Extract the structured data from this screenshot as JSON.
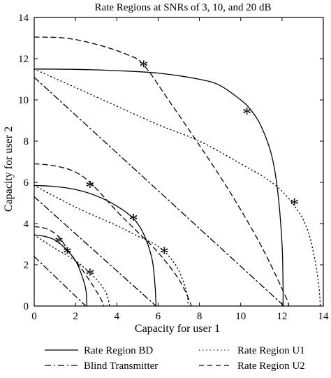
{
  "chart_data": {
    "type": "line",
    "title": "Rate Regions at SNRs of 3, 10, and 20 dB",
    "xlabel": "Capacity for user 1",
    "ylabel": "Capacity for user 2",
    "xlim": [
      0,
      14
    ],
    "ylim": [
      0,
      14
    ],
    "xticks": [
      "0",
      "2",
      "4",
      "6",
      "8",
      "10",
      "12",
      "14"
    ],
    "yticks": [
      "0",
      "2",
      "4",
      "6",
      "8",
      "10",
      "12",
      "14"
    ],
    "grid": false,
    "legend_position": "bottom",
    "series": [
      {
        "name": "Rate Region BD",
        "style": "solid",
        "curves": [
          [
            [
              0,
              11.5
            ],
            [
              2,
              11.48
            ],
            [
              4,
              11.42
            ],
            [
              6,
              11.3
            ],
            [
              8,
              11.0
            ],
            [
              9,
              10.7
            ],
            [
              10,
              10.0
            ],
            [
              10.5,
              9.5
            ],
            [
              11,
              8.7
            ],
            [
              11.5,
              7.3
            ],
            [
              11.8,
              5.5
            ],
            [
              12.0,
              3.0
            ],
            [
              12.05,
              1.0
            ],
            [
              12.05,
              0
            ]
          ],
          [
            [
              0,
              5.85
            ],
            [
              1,
              5.8
            ],
            [
              2,
              5.65
            ],
            [
              3,
              5.35
            ],
            [
              4,
              4.85
            ],
            [
              4.8,
              4.25
            ],
            [
              5.3,
              3.5
            ],
            [
              5.7,
              2.3
            ],
            [
              5.85,
              1.0
            ],
            [
              5.9,
              0
            ]
          ],
          [
            [
              0,
              3.45
            ],
            [
              0.5,
              3.38
            ],
            [
              1.0,
              3.2
            ],
            [
              1.5,
              2.8
            ],
            [
              2.0,
              2.2
            ],
            [
              2.3,
              1.5
            ],
            [
              2.5,
              0.8
            ],
            [
              2.55,
              0
            ]
          ]
        ]
      },
      {
        "name": "Rate Region U1",
        "style": "dotted",
        "curves": [
          [
            [
              0,
              11.5
            ],
            [
              2,
              10.6
            ],
            [
              4,
              9.7
            ],
            [
              6,
              8.8
            ],
            [
              8,
              8.0
            ],
            [
              10,
              6.9
            ],
            [
              11.5,
              6.0
            ],
            [
              12.5,
              5.0
            ],
            [
              13.2,
              3.8
            ],
            [
              13.6,
              2.2
            ],
            [
              13.8,
              0.8
            ],
            [
              13.85,
              0
            ]
          ],
          [
            [
              0,
              5.85
            ],
            [
              2,
              4.8
            ],
            [
              4,
              3.9
            ],
            [
              5,
              3.4
            ],
            [
              6,
              2.9
            ],
            [
              6.7,
              2.2
            ],
            [
              7.1,
              1.5
            ],
            [
              7.4,
              0.6
            ],
            [
              7.45,
              0
            ]
          ],
          [
            [
              0,
              3.45
            ],
            [
              1,
              2.8
            ],
            [
              2,
              2.2
            ],
            [
              2.6,
              1.7
            ],
            [
              3.1,
              1.2
            ],
            [
              3.5,
              0.6
            ],
            [
              3.65,
              0
            ]
          ]
        ]
      },
      {
        "name": "Blind Transmitter",
        "style": "dashdot",
        "curves": [
          [
            [
              0,
              11.1
            ],
            [
              12.1,
              0
            ]
          ],
          [
            [
              0,
              5.3
            ],
            [
              5.9,
              0
            ]
          ],
          [
            [
              0,
              2.4
            ],
            [
              2.5,
              0
            ]
          ]
        ]
      },
      {
        "name": "Rate Region U2",
        "style": "dashed",
        "curves": [
          [
            [
              0,
              13.05
            ],
            [
              1.5,
              13.0
            ],
            [
              3,
              12.7
            ],
            [
              4.5,
              12.2
            ],
            [
              5.3,
              11.7
            ],
            [
              6.5,
              10.0
            ],
            [
              8,
              7.8
            ],
            [
              9.5,
              5.5
            ],
            [
              11,
              2.9
            ],
            [
              12.2,
              0.4
            ],
            [
              12.3,
              0
            ]
          ],
          [
            [
              0,
              6.9
            ],
            [
              1,
              6.8
            ],
            [
              2,
              6.5
            ],
            [
              2.8,
              5.9
            ],
            [
              4,
              4.6
            ],
            [
              5,
              3.6
            ],
            [
              6,
              2.6
            ],
            [
              7,
              1.3
            ],
            [
              7.5,
              0.3
            ],
            [
              7.6,
              0
            ]
          ],
          [
            [
              0,
              3.85
            ],
            [
              0.6,
              3.75
            ],
            [
              1.2,
              3.35
            ],
            [
              1.7,
              2.6
            ],
            [
              2.3,
              1.8
            ],
            [
              2.9,
              0.9
            ],
            [
              3.3,
              0.2
            ],
            [
              3.35,
              0
            ]
          ]
        ]
      }
    ],
    "markers": [
      {
        "x": 5.3,
        "y": 11.7
      },
      {
        "x": 10.3,
        "y": 9.4
      },
      {
        "x": 12.6,
        "y": 5.0
      },
      {
        "x": 2.7,
        "y": 5.85
      },
      {
        "x": 4.8,
        "y": 4.25
      },
      {
        "x": 6.3,
        "y": 2.65
      },
      {
        "x": 1.2,
        "y": 3.15
      },
      {
        "x": 1.6,
        "y": 2.65
      },
      {
        "x": 2.7,
        "y": 1.6
      }
    ],
    "marker_symbol": "*",
    "legend": [
      {
        "label": "Rate Region BD",
        "style": "solid"
      },
      {
        "label": "Rate Region U1",
        "style": "dotted"
      },
      {
        "label": "Blind Transmitter",
        "style": "dashdot"
      },
      {
        "label": "Rate Region U2",
        "style": "dashed"
      }
    ]
  }
}
